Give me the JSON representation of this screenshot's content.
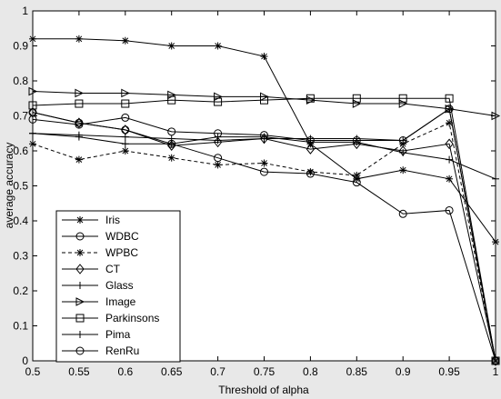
{
  "chart_data": {
    "type": "line",
    "xlabel": "Threshold of alpha",
    "ylabel": "average accuracy",
    "xlim": [
      0.5,
      1
    ],
    "ylim": [
      0,
      1
    ],
    "x_ticks": [
      "0.5",
      "0.55",
      "0.6",
      "0.65",
      "0.7",
      "0.75",
      "0.8",
      "0.85",
      "0.9",
      "0.95",
      "1"
    ],
    "y_ticks": [
      "0",
      "0.1",
      "0.2",
      "0.3",
      "0.4",
      "0.5",
      "0.6",
      "0.7",
      "0.8",
      "0.9",
      "1"
    ],
    "grid": false,
    "legend": "lower-left",
    "x": [
      0.5,
      0.55,
      0.6,
      0.65,
      0.7,
      0.75,
      0.8,
      0.85,
      0.9,
      0.95,
      1.0
    ],
    "series": [
      {
        "name": "Iris",
        "marker": "star",
        "dash": "solid",
        "values": [
          0.92,
          0.92,
          0.915,
          0.9,
          0.9,
          0.87,
          0.62,
          0.52,
          0.545,
          0.52,
          0.34
        ]
      },
      {
        "name": "WDBC",
        "marker": "circle",
        "dash": "solid",
        "values": [
          0.71,
          0.68,
          0.66,
          0.62,
          0.58,
          0.54,
          0.535,
          0.51,
          0.42,
          0.43,
          0.0
        ]
      },
      {
        "name": "WPBC",
        "marker": "star",
        "dash": "dashed",
        "values": [
          0.62,
          0.575,
          0.6,
          0.58,
          0.56,
          0.565,
          0.54,
          0.53,
          0.62,
          0.68,
          0.0
        ]
      },
      {
        "name": "CT",
        "marker": "diamond",
        "dash": "solid",
        "values": [
          0.71,
          0.68,
          0.66,
          0.615,
          0.625,
          0.635,
          0.605,
          0.62,
          0.6,
          0.62,
          0.0
        ]
      },
      {
        "name": "Glass",
        "marker": "plus",
        "dash": "solid",
        "values": [
          0.65,
          0.645,
          0.64,
          0.635,
          0.63,
          0.635,
          0.635,
          0.635,
          0.63,
          0.72,
          0.0
        ]
      },
      {
        "name": "Image",
        "marker": "triangle-right",
        "dash": "solid",
        "values": [
          0.77,
          0.765,
          0.765,
          0.76,
          0.755,
          0.755,
          0.745,
          0.735,
          0.735,
          0.72,
          0.7
        ]
      },
      {
        "name": "Parkinsons",
        "marker": "square",
        "dash": "solid",
        "values": [
          0.73,
          0.735,
          0.735,
          0.745,
          0.74,
          0.745,
          0.75,
          0.75,
          0.75,
          0.75,
          0.0
        ]
      },
      {
        "name": "Pima",
        "marker": "plus",
        "dash": "solid",
        "values": [
          0.65,
          0.64,
          0.62,
          0.62,
          0.64,
          0.64,
          0.625,
          0.625,
          0.595,
          0.575,
          0.52
        ]
      },
      {
        "name": "RenRu",
        "marker": "circle",
        "dash": "solid",
        "values": [
          0.69,
          0.675,
          0.695,
          0.655,
          0.65,
          0.645,
          0.63,
          0.63,
          0.63,
          0.72,
          0.0
        ]
      }
    ]
  }
}
